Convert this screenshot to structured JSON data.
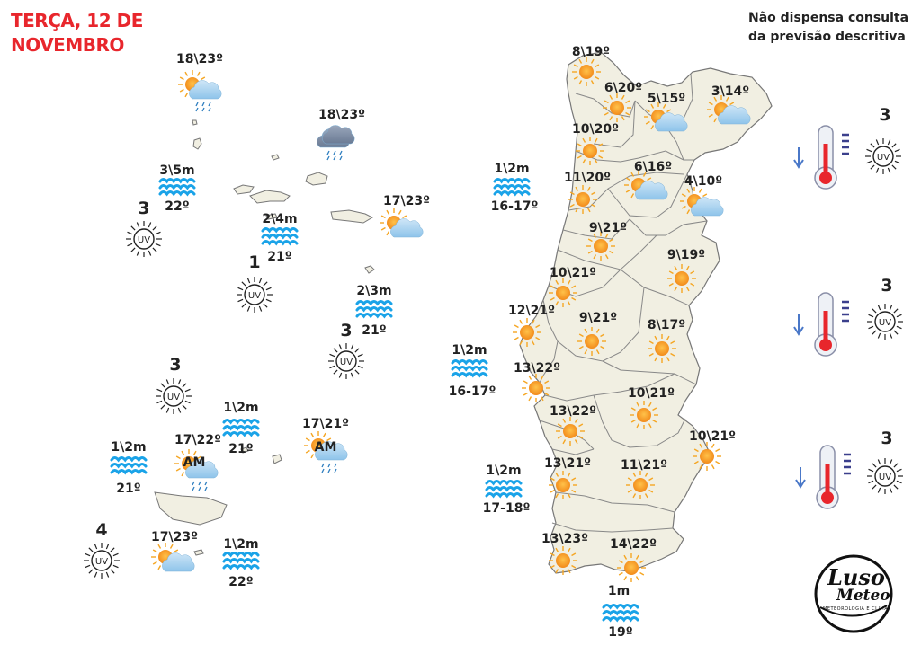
{
  "header": {
    "title_line1": "TERÇA, 12 DE",
    "title_line2": "NOVEMBRO",
    "notice_line1": "Não dispensa consulta",
    "notice_line2": "da previsão descritiva"
  },
  "colors": {
    "title": "#e8262c",
    "sea": "#1aa3e8",
    "sun": "#f5a623",
    "land": "#f1efe2"
  },
  "azores": {
    "cities": [
      {
        "temp": "18\\23º",
        "icon": "sun-cloud-rain-icon"
      },
      {
        "temp": "18\\23º",
        "icon": "cloud-rain-icon"
      },
      {
        "temp": "17\\23º",
        "icon": "sun-cloud-icon"
      }
    ],
    "seas": [
      {
        "waves": "3\\5m",
        "water": "22º"
      },
      {
        "waves": "2\\4m",
        "water": "21º"
      },
      {
        "waves": "2\\3m",
        "water": "21º"
      }
    ],
    "uv": [
      "3",
      "1",
      "3"
    ]
  },
  "madeira": {
    "cities": [
      {
        "temp": "17\\22º",
        "icon": "sun-cloud-rain-icon",
        "tag": "AM"
      },
      {
        "temp": "17\\21º",
        "icon": "sun-cloud-rain-icon",
        "tag": "AM"
      },
      {
        "temp": "17\\23º",
        "icon": "sun-cloud-icon"
      }
    ],
    "seas": [
      {
        "waves": "1\\2m",
        "water": "21º"
      },
      {
        "waves": "1\\2m",
        "water": "21º"
      },
      {
        "waves": "1\\2m",
        "water": "22º"
      }
    ],
    "uv": [
      "3",
      "4"
    ]
  },
  "mainland": {
    "cities": [
      {
        "temp": "8\\19º",
        "icon": "sun-icon"
      },
      {
        "temp": "6\\20º",
        "icon": "sun-icon"
      },
      {
        "temp": "5\\15º",
        "icon": "sun-cloud-icon"
      },
      {
        "temp": "3\\14º",
        "icon": "sun-cloud-icon"
      },
      {
        "temp": "10\\20º",
        "icon": "sun-icon"
      },
      {
        "temp": "11\\20º",
        "icon": "sun-icon"
      },
      {
        "temp": "6\\16º",
        "icon": "sun-cloud-icon"
      },
      {
        "temp": "4\\10º",
        "icon": "sun-cloud-icon"
      },
      {
        "temp": "9\\21º",
        "icon": "sun-icon"
      },
      {
        "temp": "9\\19º",
        "icon": "sun-icon"
      },
      {
        "temp": "10\\21º",
        "icon": "sun-icon"
      },
      {
        "temp": "12\\21º",
        "icon": "sun-icon"
      },
      {
        "temp": "9\\21º",
        "icon": "sun-icon"
      },
      {
        "temp": "8\\17º",
        "icon": "sun-icon"
      },
      {
        "temp": "13\\22º",
        "icon": "sun-icon"
      },
      {
        "temp": "10\\21º",
        "icon": "sun-icon"
      },
      {
        "temp": "13\\22º",
        "icon": "sun-icon"
      },
      {
        "temp": "10\\21º",
        "icon": "sun-icon"
      },
      {
        "temp": "13\\21º",
        "icon": "sun-icon"
      },
      {
        "temp": "11\\21º",
        "icon": "sun-icon"
      },
      {
        "temp": "13\\23º",
        "icon": "sun-icon"
      },
      {
        "temp": "14\\22º",
        "icon": "sun-icon"
      }
    ],
    "seas": [
      {
        "waves": "1\\2m",
        "water": "16-17º"
      },
      {
        "waves": "1\\2m",
        "water": "16-17º"
      },
      {
        "waves": "1\\2m",
        "water": "17-18º"
      },
      {
        "waves": "1m",
        "water": "19º"
      }
    ],
    "uv_panel": [
      "3",
      "3",
      "3"
    ]
  },
  "logo": {
    "line1": "Luso",
    "line2": "Meteo",
    "line3": "METEOROLOGIA E CLIMA"
  }
}
